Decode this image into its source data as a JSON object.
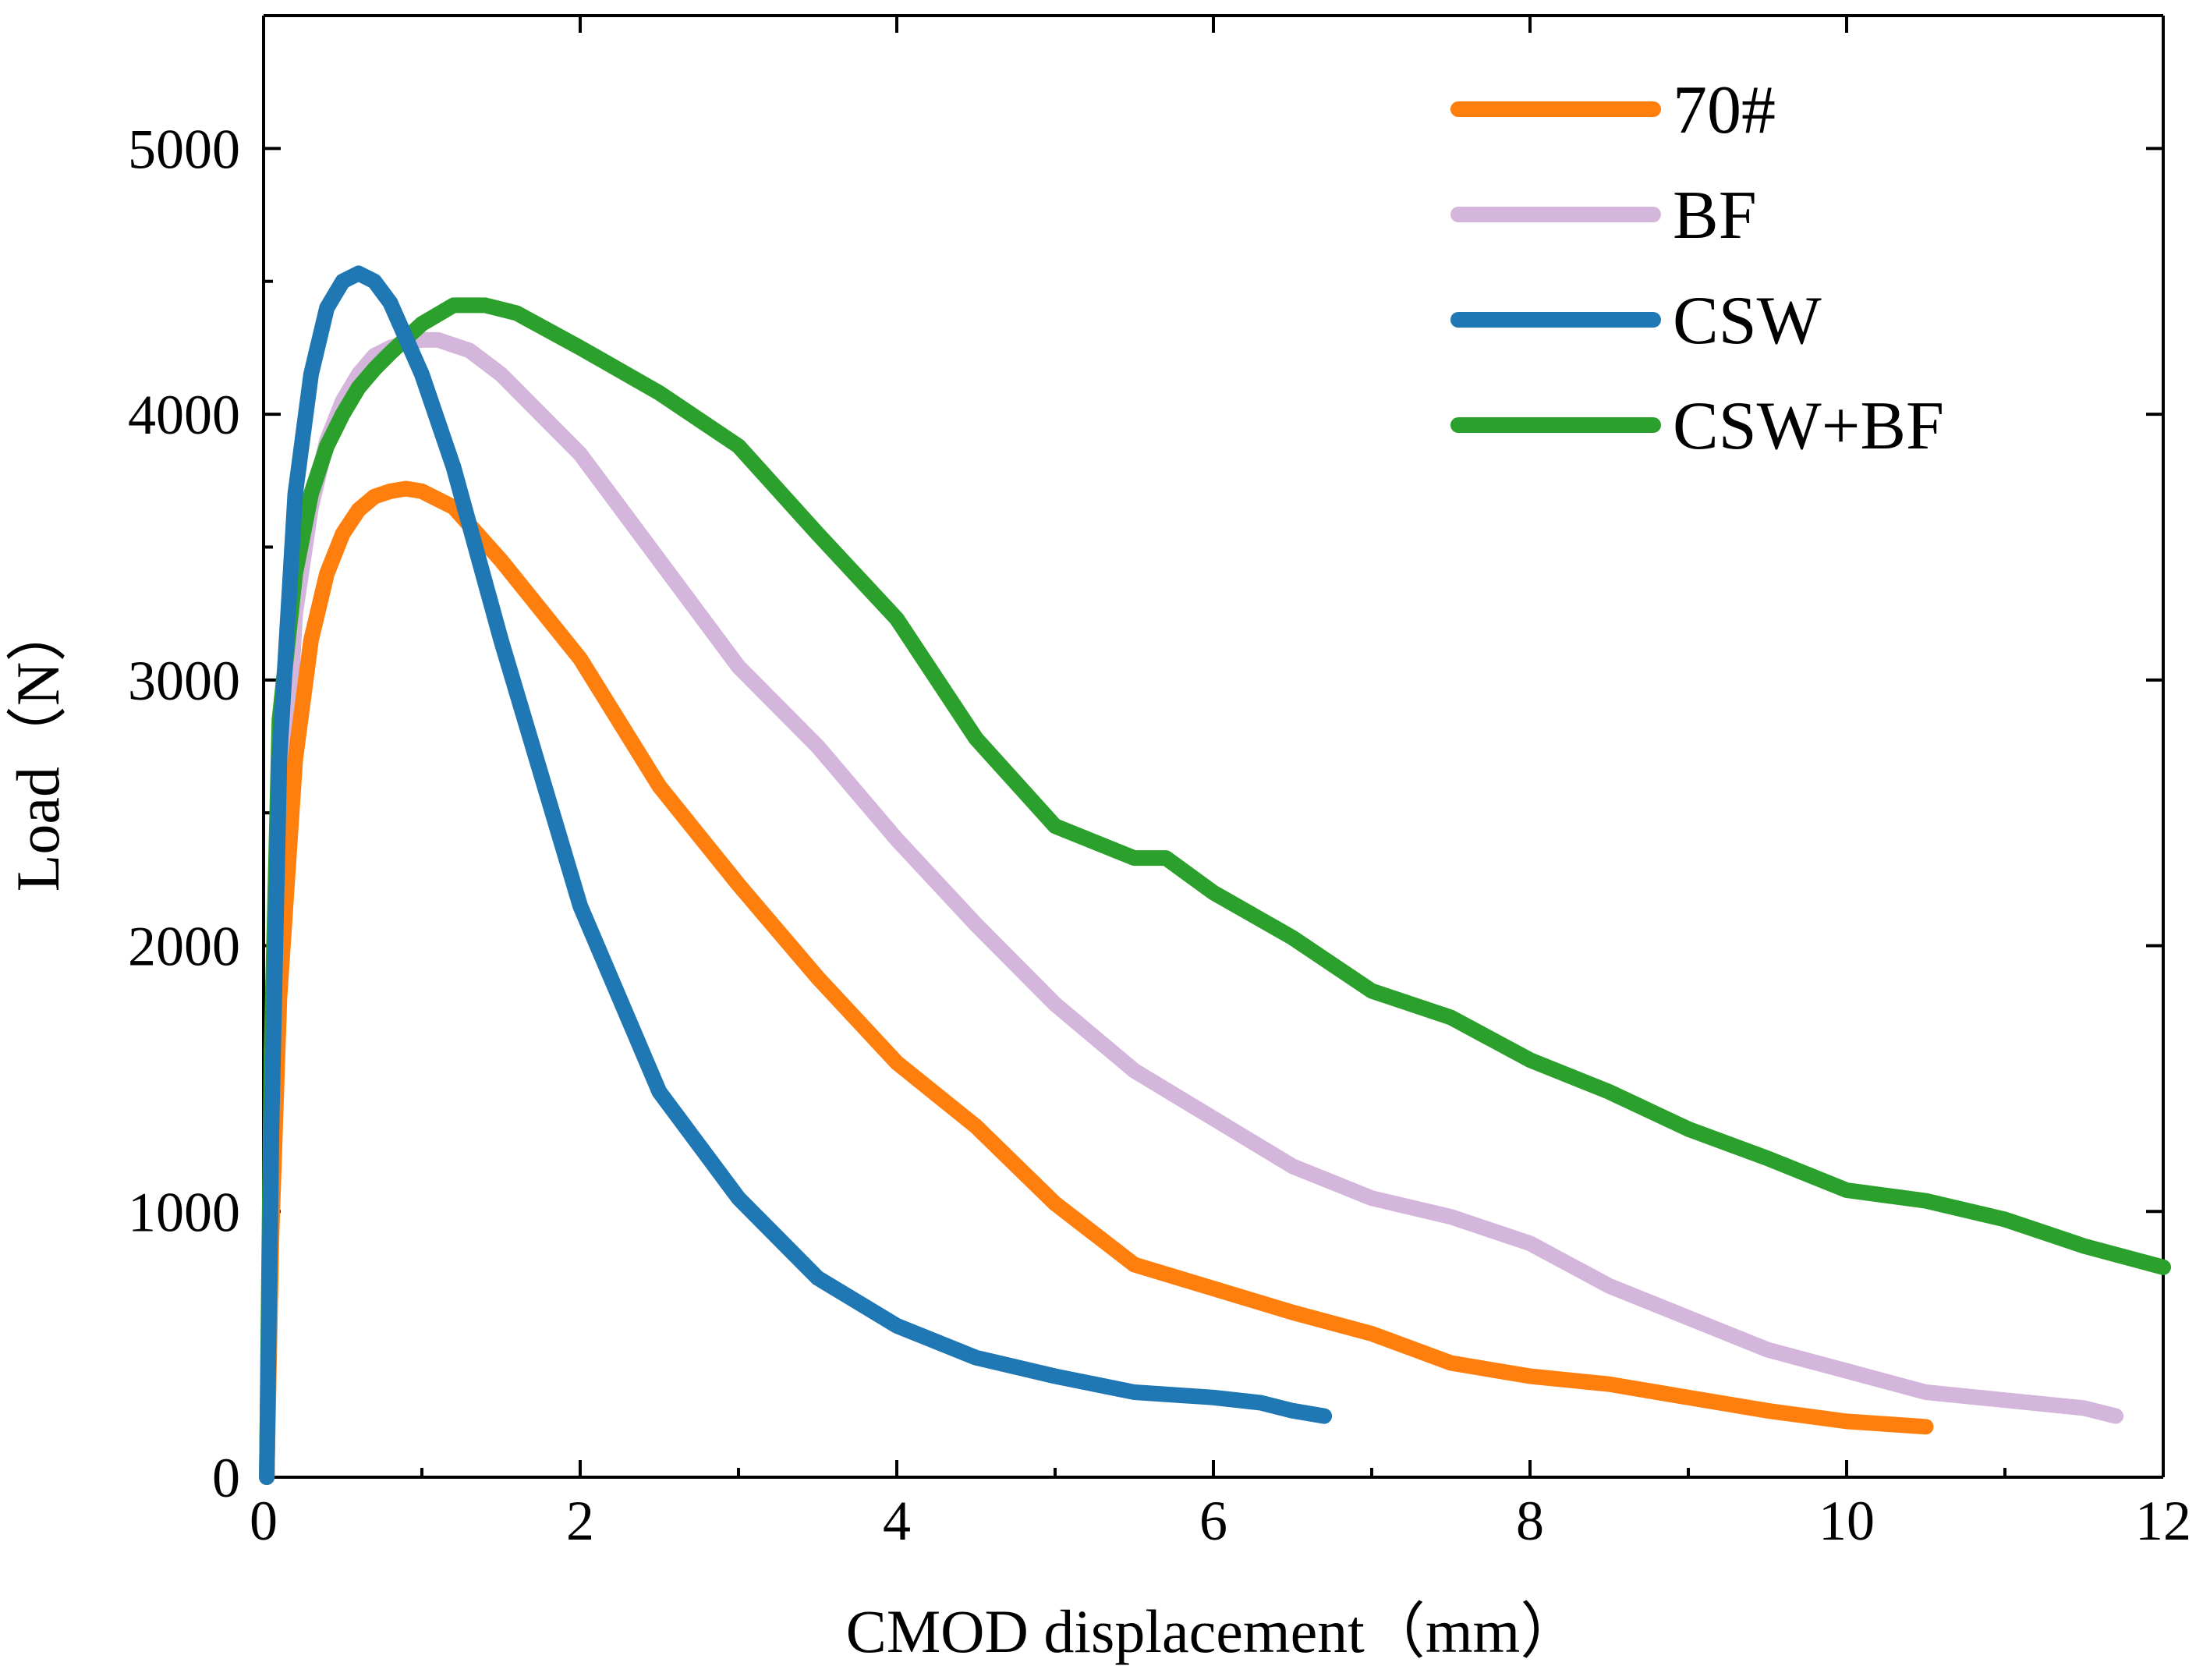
{
  "chart_data": {
    "type": "line",
    "title": "",
    "xlabel": "CMOD displacement（mm）",
    "ylabel": "Load（N）",
    "xlim": [
      0,
      12
    ],
    "ylim": [
      0,
      5500
    ],
    "x_ticks": [
      0,
      2,
      4,
      6,
      8,
      10,
      12
    ],
    "y_ticks": [
      0,
      1000,
      2000,
      3000,
      4000,
      5000
    ],
    "x_tick_labels": [
      "0",
      "2",
      "4",
      "6",
      "8",
      "10",
      "12"
    ],
    "y_tick_labels": [
      "0",
      "1000",
      "2000",
      "3000",
      "4000",
      "5000"
    ],
    "grid": false,
    "legend_position": "top-right",
    "series": [
      {
        "name": "70#",
        "color": "#FF7F0E",
        "x": [
          0.02,
          0.05,
          0.1,
          0.2,
          0.3,
          0.4,
          0.5,
          0.6,
          0.7,
          0.8,
          0.9,
          1.0,
          1.2,
          1.5,
          2.0,
          2.5,
          3.0,
          3.5,
          4.0,
          4.5,
          5.0,
          5.5,
          6.0,
          6.5,
          7.0,
          7.5,
          8.0,
          8.5,
          9.0,
          9.5,
          10.0,
          10.5
        ],
        "y": [
          0,
          900,
          1800,
          2700,
          3150,
          3400,
          3550,
          3640,
          3690,
          3710,
          3720,
          3710,
          3650,
          3450,
          3080,
          2600,
          2230,
          1880,
          1560,
          1320,
          1030,
          800,
          710,
          620,
          540,
          430,
          380,
          350,
          300,
          250,
          210,
          190
        ]
      },
      {
        "name": "BF",
        "color": "#D4B5DB",
        "x": [
          0.02,
          0.05,
          0.1,
          0.2,
          0.3,
          0.4,
          0.5,
          0.6,
          0.7,
          0.8,
          0.9,
          1.0,
          1.1,
          1.3,
          1.5,
          2.0,
          2.5,
          3.0,
          3.5,
          4.0,
          4.5,
          5.0,
          5.5,
          6.0,
          6.5,
          7.0,
          7.5,
          8.0,
          8.5,
          9.0,
          9.5,
          10.0,
          10.5,
          11.0,
          11.5,
          11.7
        ],
        "y": [
          0,
          1100,
          2200,
          3250,
          3650,
          3900,
          4050,
          4150,
          4220,
          4250,
          4270,
          4280,
          4280,
          4240,
          4150,
          3850,
          3450,
          3050,
          2750,
          2400,
          2080,
          1780,
          1530,
          1350,
          1170,
          1050,
          980,
          880,
          720,
          600,
          480,
          400,
          320,
          290,
          260,
          230
        ]
      },
      {
        "name": "CSW",
        "color": "#1F77B4",
        "x": [
          0.02,
          0.05,
          0.1,
          0.2,
          0.3,
          0.4,
          0.5,
          0.6,
          0.7,
          0.8,
          1.0,
          1.2,
          1.5,
          2.0,
          2.5,
          3.0,
          3.5,
          4.0,
          4.5,
          5.0,
          5.5,
          6.0,
          6.3,
          6.5,
          6.7
        ],
        "y": [
          0,
          1300,
          2700,
          3700,
          4150,
          4400,
          4500,
          4530,
          4500,
          4420,
          4150,
          3800,
          3150,
          2150,
          1450,
          1050,
          750,
          570,
          450,
          380,
          320,
          300,
          280,
          250,
          230
        ]
      },
      {
        "name": "CSW+BF",
        "color": "#2CA02C",
        "x": [
          0.02,
          0.05,
          0.1,
          0.2,
          0.3,
          0.4,
          0.5,
          0.6,
          0.7,
          0.8,
          1.0,
          1.2,
          1.4,
          1.6,
          2.0,
          2.5,
          3.0,
          3.5,
          4.0,
          4.5,
          5.0,
          5.5,
          5.7,
          6.0,
          6.5,
          7.0,
          7.5,
          8.0,
          8.5,
          9.0,
          9.5,
          10.0,
          10.5,
          11.0,
          11.5,
          12.0
        ],
        "y": [
          0,
          1600,
          2850,
          3400,
          3700,
          3880,
          4000,
          4100,
          4170,
          4230,
          4340,
          4410,
          4410,
          4380,
          4250,
          4080,
          3880,
          3550,
          3230,
          2780,
          2450,
          2330,
          2330,
          2200,
          2030,
          1830,
          1730,
          1570,
          1450,
          1310,
          1200,
          1080,
          1040,
          970,
          870,
          790
        ]
      }
    ]
  }
}
